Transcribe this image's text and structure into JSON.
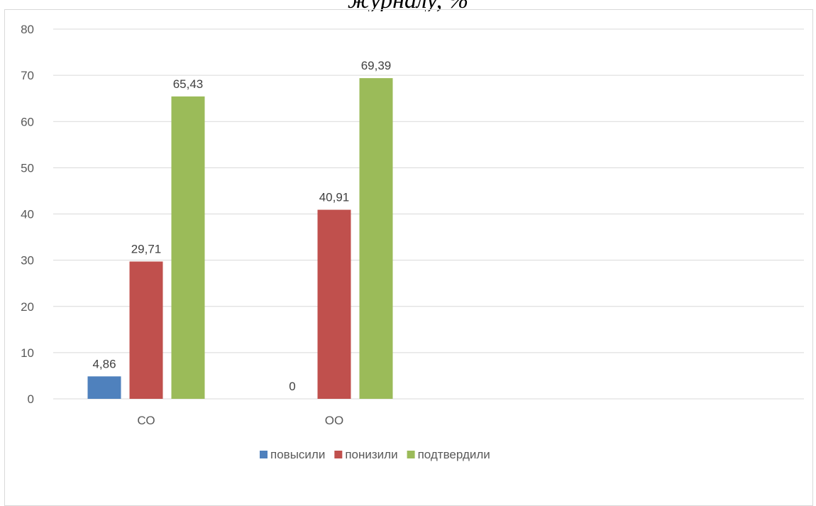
{
  "chart_data": {
    "type": "bar",
    "title": "журналу, %",
    "categories": [
      "СО",
      "ОО"
    ],
    "series": [
      {
        "name": "повысили",
        "values": [
          4.86,
          0
        ],
        "labels": [
          "4,86",
          "0"
        ],
        "color": "#4f81bd"
      },
      {
        "name": "понизили",
        "values": [
          29.71,
          40.91
        ],
        "labels": [
          "29,71",
          "40,91"
        ],
        "color": "#c0504d"
      },
      {
        "name": "подтвердили",
        "values": [
          65.43,
          69.39
        ],
        "labels": [
          "65,43",
          "69,39"
        ],
        "color": "#9bbb59"
      }
    ],
    "ylim": [
      0,
      80
    ],
    "yticks": [
      0,
      10,
      20,
      30,
      40,
      50,
      60,
      70,
      80
    ],
    "grid": true,
    "legend": "bottom",
    "xlabel": "",
    "ylabel": ""
  }
}
